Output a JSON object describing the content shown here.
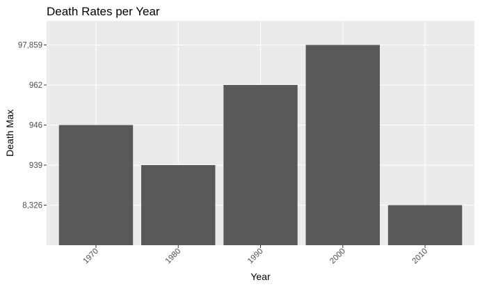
{
  "chart_data": {
    "type": "bar",
    "title": "Death Rates per Year",
    "xlabel": "Year",
    "ylabel": "Death Max",
    "categories": [
      "1970",
      "1980",
      "1990",
      "2000",
      "2010"
    ],
    "y_axis_kind": "discrete",
    "y_levels": [
      "8,326",
      "939",
      "946",
      "962",
      "97,859"
    ],
    "values": [
      "946",
      "939",
      "962",
      "97,859",
      "8,326"
    ],
    "grid": true,
    "legend": "none",
    "colors": {
      "panel": "#ebebeb",
      "grid": "#ffffff",
      "bar": "#595959",
      "tick_text": "#4d4d4d",
      "text": "#000000"
    }
  }
}
